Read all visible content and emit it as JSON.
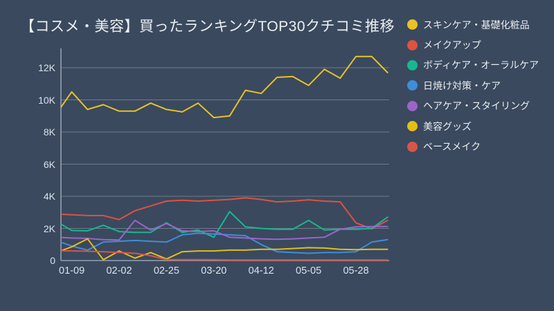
{
  "title": "【コスメ・美容】買ったランキングTOP30クチコミ推移",
  "colors": {
    "background": "#3A495E",
    "text": "#ECEFF1",
    "grid": "rgba(255,255,255,0.28)",
    "axis": "#96A1AF"
  },
  "chart_data": {
    "type": "line",
    "title": "【コスメ・美容】買ったランキングTOP30クチコミ推移",
    "xlabel": "",
    "ylabel": "",
    "ylim": [
      0,
      13000
    ],
    "grid": "horizontal",
    "legend_position": "right",
    "y_ticks": [
      {
        "value": 0,
        "label": "0"
      },
      {
        "value": 2000,
        "label": "2K"
      },
      {
        "value": 4000,
        "label": "4K"
      },
      {
        "value": 6000,
        "label": "6K"
      },
      {
        "value": 8000,
        "label": "8K"
      },
      {
        "value": 10000,
        "label": "10K"
      },
      {
        "value": 12000,
        "label": "12K"
      }
    ],
    "x_tick_labels": [
      "01-09",
      "02-02",
      "02-25",
      "03-20",
      "04-12",
      "05-05",
      "05-28"
    ],
    "x_tick_indices": [
      1,
      4,
      7,
      10,
      13,
      16,
      19
    ],
    "n_points": 22,
    "series": [
      {
        "name": "スキンケア・基礎化粧品",
        "color": "#E8C227",
        "values": [
          9100,
          10500,
          9400,
          9700,
          9300,
          9300,
          9800,
          9400,
          9250,
          9800,
          8900,
          9000,
          10600,
          10400,
          11400,
          11450,
          10900,
          11900,
          11350,
          12700,
          12700,
          11700
        ]
      },
      {
        "name": "メイクアップ",
        "color": "#DF5240",
        "values": [
          2900,
          2850,
          2800,
          2800,
          2550,
          3100,
          3400,
          3700,
          3750,
          3700,
          3750,
          3800,
          3900,
          3800,
          3650,
          3700,
          3780,
          3700,
          3650,
          2350,
          1970,
          2500
        ]
      },
      {
        "name": "ボディケア・オーラルケア",
        "color": "#17B890",
        "values": [
          2450,
          1870,
          1850,
          2200,
          1800,
          1750,
          1750,
          2350,
          1750,
          1900,
          1450,
          3050,
          2100,
          2000,
          1950,
          1950,
          2500,
          1900,
          1950,
          1950,
          2000,
          2700
        ]
      },
      {
        "name": "日焼け対策・ケア",
        "color": "#3D8ED9",
        "values": [
          1250,
          900,
          650,
          1150,
          1200,
          1250,
          1200,
          1150,
          1600,
          1700,
          1650,
          1600,
          1550,
          1000,
          550,
          500,
          450,
          500,
          500,
          550,
          1150,
          1300
        ]
      },
      {
        "name": "ヘアケア・スタイリング",
        "color": "#9C64C8",
        "values": [
          1450,
          1400,
          1380,
          1300,
          1280,
          2500,
          1900,
          2300,
          1850,
          1800,
          1850,
          1450,
          1400,
          1350,
          1320,
          1350,
          1400,
          1450,
          1950,
          2100,
          2120,
          2120
        ]
      },
      {
        "name": "美容グッズ",
        "color": "#E5BE16",
        "values": [
          500,
          850,
          1350,
          50,
          600,
          150,
          500,
          100,
          550,
          600,
          600,
          650,
          650,
          700,
          700,
          750,
          800,
          780,
          700,
          680,
          700,
          700
        ]
      },
      {
        "name": "ベースメイク",
        "color": "#D95548",
        "values": [
          620,
          600,
          580,
          550,
          500,
          450,
          300,
          60,
          50,
          50,
          50,
          40,
          40,
          40,
          40,
          40,
          40,
          40,
          40,
          40,
          40,
          40
        ]
      }
    ]
  }
}
